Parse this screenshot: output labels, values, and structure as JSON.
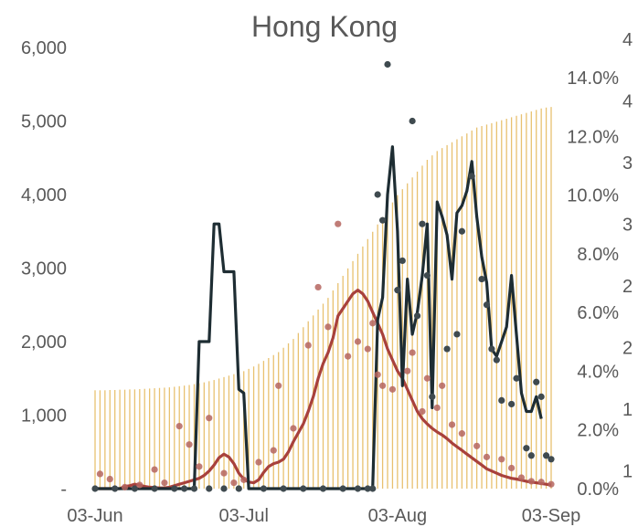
{
  "chart_data": {
    "type": "combo",
    "title": "Hong Kong",
    "x_tick_labels": [
      "03-Jun",
      "03-Jul",
      "03-Aug",
      "03-Sep"
    ],
    "x_tick_days": [
      0,
      30,
      61,
      92
    ],
    "left_axis": {
      "ylim": [
        0,
        6000
      ],
      "ticks": [
        0,
        1000,
        2000,
        3000,
        4000,
        5000,
        6000
      ],
      "tick_labels": [
        "-",
        "1,000",
        "2,000",
        "3,000",
        "4,000",
        "5,000",
        "6,000"
      ]
    },
    "right_axis": {
      "ylim": [
        0,
        16
      ],
      "ticks": [
        0,
        2,
        4,
        6,
        8,
        10,
        12,
        14
      ],
      "tick_labels": [
        "0.0%",
        "2.0%",
        "4.0%",
        "6.0%",
        "8.0%",
        "10.0%",
        "12.0%",
        "14.0%"
      ]
    },
    "far_right_axis": {
      "visible_digits": [
        "4",
        "4",
        "3",
        "3",
        "2",
        "2",
        "1",
        "1"
      ]
    },
    "colors": {
      "bars": "#e8c170",
      "dark_line": "#1e2d33",
      "dark_dots": "#3f4a4f",
      "red_line": "#a8413c",
      "red_dots": "#b5655f"
    },
    "series": [
      {
        "type": "bar",
        "axis": "right",
        "values": [
          3.35,
          3.35,
          3.35,
          3.36,
          3.36,
          3.37,
          3.37,
          3.38,
          3.38,
          3.39,
          3.4,
          3.41,
          3.42,
          3.43,
          3.44,
          3.45,
          3.47,
          3.49,
          3.51,
          3.53,
          3.56,
          3.59,
          3.62,
          3.66,
          3.7,
          3.75,
          3.8,
          3.85,
          3.9,
          3.95,
          4.0,
          4.08,
          4.16,
          4.25,
          4.35,
          4.45,
          4.55,
          4.65,
          4.8,
          4.95,
          5.1,
          5.3,
          5.5,
          5.7,
          5.9,
          6.1,
          6.3,
          6.5,
          6.75,
          7.0,
          7.25,
          7.5,
          7.75,
          8.0,
          8.25,
          8.5,
          8.75,
          9.0,
          9.25,
          9.5,
          9.75,
          10.0,
          10.2,
          10.4,
          10.6,
          10.8,
          11.0,
          11.2,
          11.35,
          11.5,
          11.6,
          11.7,
          11.8,
          11.9,
          12.0,
          12.1,
          12.2,
          12.3,
          12.35,
          12.4,
          12.45,
          12.5,
          12.55,
          12.6,
          12.65,
          12.7,
          12.75,
          12.8,
          12.85,
          12.9,
          12.95,
          12.98,
          13.0
        ]
      },
      {
        "type": "line",
        "axis": "left",
        "values": [
          0,
          0,
          0,
          0,
          0,
          0,
          0,
          0,
          0,
          0,
          0,
          0,
          0,
          0,
          0,
          0,
          0,
          0,
          0,
          0,
          0,
          2000,
          2000,
          2000,
          3600,
          3600,
          2950,
          2950,
          2950,
          1350,
          1300,
          0,
          0,
          0,
          0,
          0,
          0,
          0,
          0,
          0,
          0,
          0,
          0,
          0,
          0,
          0,
          0,
          0,
          0,
          0,
          0,
          0,
          0,
          0,
          0,
          0,
          0,
          2300,
          2600,
          4000,
          4650,
          3500,
          1400,
          2850,
          2100,
          2400,
          2900,
          3600,
          1100,
          3900,
          3700,
          3450,
          2850,
          3750,
          3850,
          4050,
          4450,
          3700,
          3150,
          2800,
          1900,
          1800,
          2000,
          2200,
          2900,
          2100,
          1300,
          1050,
          1050,
          1250,
          950
        ]
      },
      {
        "type": "line",
        "axis": "left",
        "values": [
          0,
          0,
          0,
          0,
          0,
          0,
          30,
          40,
          60,
          50,
          30,
          20,
          15,
          10,
          10,
          20,
          40,
          60,
          80,
          100,
          120,
          140,
          180,
          240,
          320,
          420,
          470,
          430,
          340,
          210,
          130,
          90,
          80,
          120,
          220,
          300,
          340,
          360,
          400,
          500,
          640,
          760,
          880,
          1050,
          1250,
          1500,
          1700,
          1850,
          2050,
          2350,
          2450,
          2550,
          2650,
          2700,
          2650,
          2550,
          2400,
          2250,
          2100,
          1900,
          1750,
          1600,
          1500,
          1350,
          1200,
          1050,
          950,
          880,
          820,
          770,
          730,
          680,
          620,
          570,
          520,
          470,
          420,
          370,
          320,
          270,
          240,
          210,
          180,
          160,
          140,
          130,
          115,
          100,
          90,
          80,
          70,
          60,
          50
        ]
      },
      {
        "type": "scatter",
        "axis": "left",
        "name": "dark dots",
        "points": [
          [
            0,
            0
          ],
          [
            4,
            0
          ],
          [
            8,
            0
          ],
          [
            12,
            0
          ],
          [
            16,
            0
          ],
          [
            18,
            0
          ],
          [
            20,
            0
          ],
          [
            23,
            0
          ],
          [
            26,
            0
          ],
          [
            29,
            0
          ],
          [
            34,
            0
          ],
          [
            38,
            0
          ],
          [
            42,
            0
          ],
          [
            46,
            0
          ],
          [
            50,
            0
          ],
          [
            53,
            0
          ],
          [
            55,
            0
          ],
          [
            56,
            0
          ],
          [
            57,
            4000
          ],
          [
            58,
            3650
          ],
          [
            59,
            5770
          ],
          [
            61,
            2700
          ],
          [
            62,
            3100
          ],
          [
            64,
            5000
          ],
          [
            65,
            2350
          ],
          [
            66,
            3600
          ],
          [
            67,
            2900
          ],
          [
            68,
            1250
          ],
          [
            71,
            1900
          ],
          [
            73,
            2100
          ],
          [
            74,
            3500
          ],
          [
            76,
            4250
          ],
          [
            78,
            2850
          ],
          [
            79,
            2500
          ],
          [
            80,
            1900
          ],
          [
            81,
            1750
          ],
          [
            82,
            1200
          ],
          [
            84,
            1150
          ],
          [
            85,
            1500
          ],
          [
            87,
            550
          ],
          [
            88,
            450
          ],
          [
            89,
            1450
          ],
          [
            90,
            1250
          ],
          [
            91,
            450
          ],
          [
            92,
            400
          ]
        ]
      },
      {
        "type": "scatter",
        "axis": "left",
        "name": "red dots",
        "points": [
          [
            1,
            200
          ],
          [
            3,
            130
          ],
          [
            6,
            20
          ],
          [
            9,
            50
          ],
          [
            12,
            260
          ],
          [
            14,
            80
          ],
          [
            17,
            850
          ],
          [
            19,
            600
          ],
          [
            21,
            300
          ],
          [
            23,
            960
          ],
          [
            26,
            210
          ],
          [
            28,
            80
          ],
          [
            30,
            120
          ],
          [
            33,
            360
          ],
          [
            36,
            520
          ],
          [
            37,
            1400
          ],
          [
            40,
            820
          ],
          [
            43,
            1950
          ],
          [
            45,
            2740
          ],
          [
            47,
            2200
          ],
          [
            49,
            3600
          ],
          [
            51,
            1800
          ],
          [
            53,
            2000
          ],
          [
            55,
            1900
          ],
          [
            56,
            2250
          ],
          [
            57,
            1550
          ],
          [
            58,
            1400
          ],
          [
            60,
            1350
          ],
          [
            63,
            1600
          ],
          [
            64,
            1850
          ],
          [
            66,
            1050
          ],
          [
            67,
            1500
          ],
          [
            69,
            1100
          ],
          [
            70,
            1400
          ],
          [
            72,
            870
          ],
          [
            74,
            750
          ],
          [
            77,
            580
          ],
          [
            79,
            430
          ],
          [
            82,
            400
          ],
          [
            84,
            280
          ],
          [
            86,
            150
          ],
          [
            88,
            100
          ],
          [
            90,
            90
          ],
          [
            92,
            60
          ]
        ]
      }
    ]
  }
}
